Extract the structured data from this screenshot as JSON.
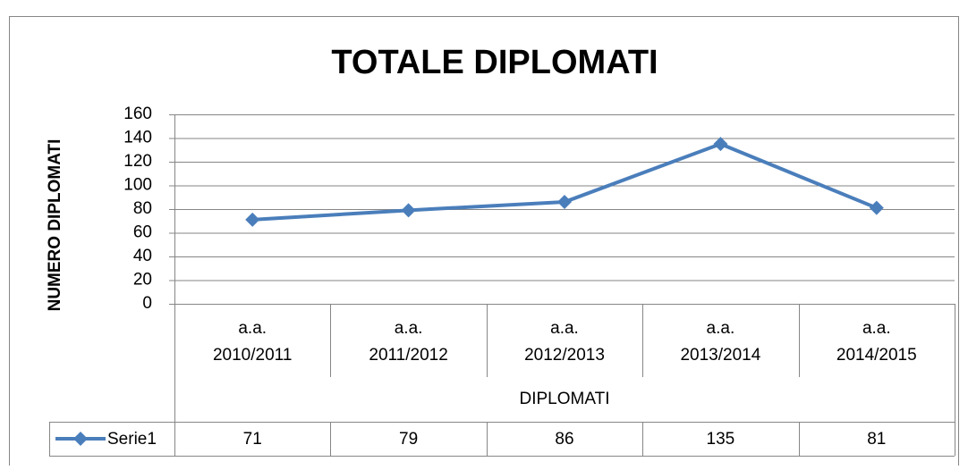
{
  "chart_data": {
    "type": "line",
    "title": "TOTALE DIPLOMATI",
    "y_label": "NUMERO DIPLOMATI",
    "x_label": "DIPLOMATI",
    "categories": [
      "a.a. 2010/2011",
      "a.a. 2011/2012",
      "a.a. 2012/2013",
      "a.a. 2013/2014",
      "a.a. 2014/2015"
    ],
    "series": [
      {
        "name": "Serie1",
        "color": "#4a7ebb",
        "values": [
          71,
          79,
          86,
          135,
          81
        ]
      }
    ],
    "ylim": [
      0,
      160
    ],
    "yticks": [
      0,
      20,
      40,
      60,
      80,
      100,
      120,
      140,
      160
    ],
    "grid": true,
    "data_table": true
  }
}
